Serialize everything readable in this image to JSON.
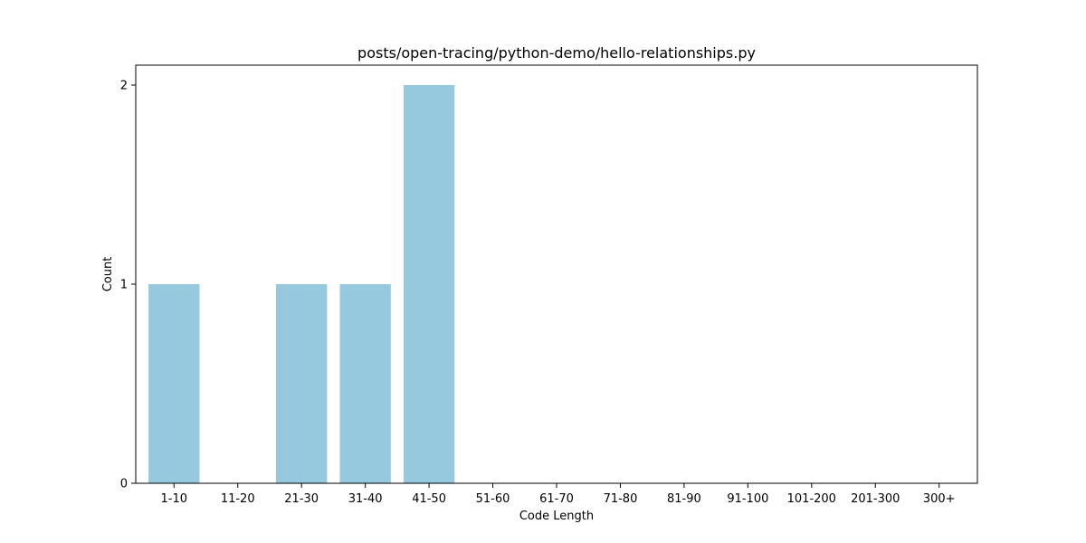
{
  "chart_data": {
    "type": "bar",
    "title": "posts/open-tracing/python-demo/hello-relationships.py",
    "xlabel": "Code Length",
    "ylabel": "Count",
    "categories": [
      "1-10",
      "11-20",
      "21-30",
      "31-40",
      "41-50",
      "51-60",
      "61-70",
      "71-80",
      "81-90",
      "91-100",
      "101-200",
      "201-300",
      "300+"
    ],
    "values": [
      1,
      0,
      1,
      1,
      2,
      0,
      0,
      0,
      0,
      0,
      0,
      0,
      0
    ],
    "ylim": [
      0,
      2.1
    ],
    "yticks": [
      0,
      1,
      2
    ],
    "grid": false,
    "bar_color": "#96c9de"
  }
}
